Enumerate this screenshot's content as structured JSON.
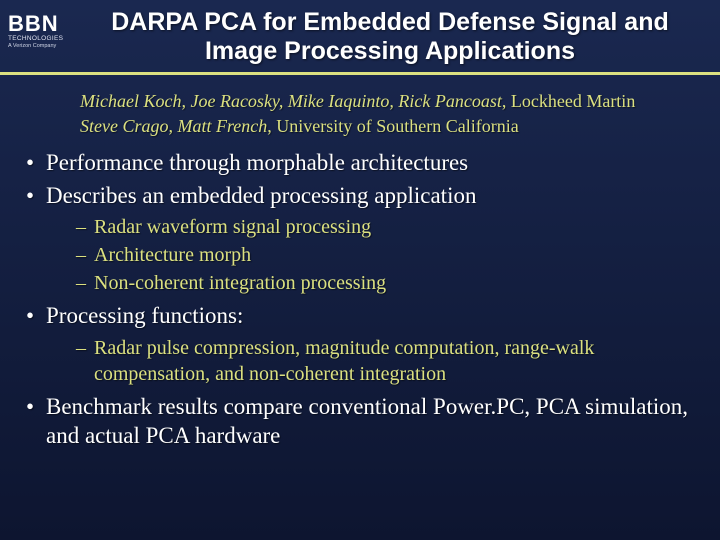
{
  "logo": {
    "line1": "BBN",
    "line2": "TECHNOLOGIES",
    "line3": "A Verizon Company"
  },
  "title": "DARPA PCA for Embedded Defense Signal and Image Processing Applications",
  "authors": {
    "line1_names": "Michael Koch, Joe Racosky, Mike Iaquinto, Rick Pancoast",
    "line1_affil": ", Lockheed Martin",
    "line2_names": "Steve Crago, Matt French",
    "line2_affil": ", University of Southern California"
  },
  "bullets": {
    "b1": "Performance through morphable architectures",
    "b2": "Describes an embedded processing application",
    "b2_sub": [
      "Radar waveform signal processing",
      "Architecture morph",
      "Non-coherent integration processing"
    ],
    "b3": "Processing functions:",
    "b3_sub": [
      "Radar pulse compression, magnitude computation, range-walk compensation, and non-coherent integration"
    ],
    "b4": "Benchmark results compare conventional Power.PC, PCA simulation, and actual PCA hardware"
  },
  "colors": {
    "accent": "#dbe080",
    "bg_top": "#1a2850",
    "bg_bottom": "#0d1530"
  }
}
